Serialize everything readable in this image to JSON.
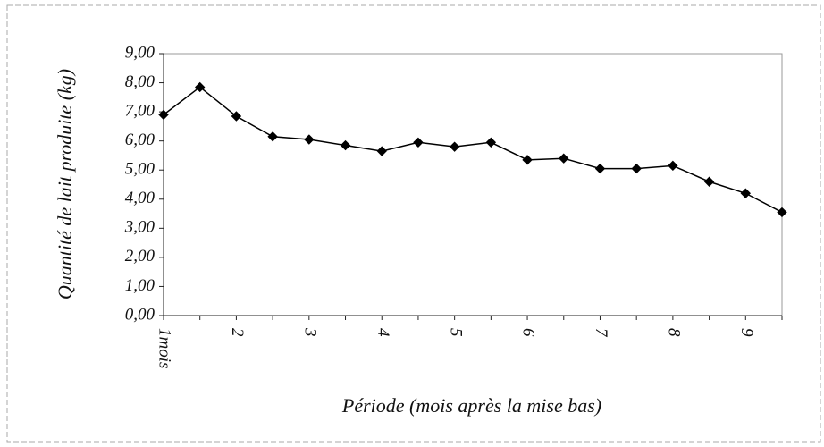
{
  "chart_data": {
    "type": "line",
    "y_label": "Quantité de lait produite (kg)",
    "x_label": "Période (mois après la mise bas)",
    "categories": [
      "1mois",
      null,
      "2",
      null,
      "3",
      null,
      "4",
      null,
      "5",
      null,
      "6",
      null,
      "7",
      null,
      "8",
      null,
      "9",
      null
    ],
    "series": [
      {
        "color": "#000000",
        "values": [
          6.9,
          7.85,
          6.85,
          6.15,
          6.05,
          5.85,
          5.65,
          5.95,
          5.8,
          5.95,
          5.35,
          5.4,
          5.05,
          5.05,
          5.15,
          4.6,
          4.2,
          3.55
        ]
      }
    ],
    "ylim": [
      0,
      9
    ],
    "yticks": [
      {
        "value": 0,
        "label": "0,00"
      },
      {
        "value": 1,
        "label": "1,00"
      },
      {
        "value": 2,
        "label": "2,00"
      },
      {
        "value": 3,
        "label": "3,00"
      },
      {
        "value": 4,
        "label": "4,00"
      },
      {
        "value": 5,
        "label": "5,00"
      },
      {
        "value": 6,
        "label": "6,00"
      },
      {
        "value": 7,
        "label": "7,00"
      },
      {
        "value": 8,
        "label": "8,00"
      },
      {
        "value": 9,
        "label": "9,00"
      }
    ],
    "grid": false
  }
}
